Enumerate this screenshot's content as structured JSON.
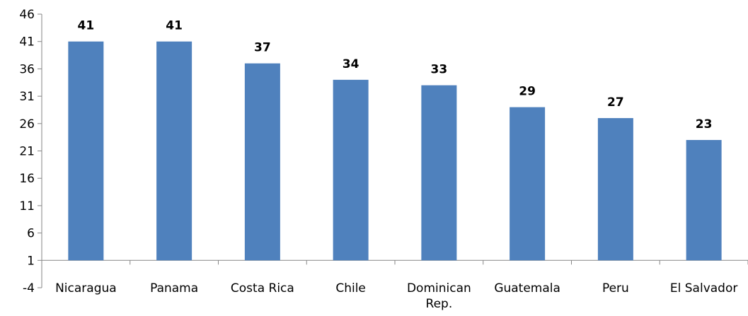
{
  "chart_data": {
    "type": "bar",
    "categories": [
      "Nicaragua",
      "Panama",
      "Costa Rica",
      "Chile",
      "Dominican Rep.",
      "Guatemala",
      "Peru",
      "El Salvador"
    ],
    "category_lines": [
      [
        "Nicaragua"
      ],
      [
        "Panama"
      ],
      [
        "Costa Rica"
      ],
      [
        "Chile"
      ],
      [
        "Dominican",
        "Rep."
      ],
      [
        "Guatemala"
      ],
      [
        "Peru"
      ],
      [
        "El Salvador"
      ]
    ],
    "values": [
      41,
      41,
      37,
      34,
      33,
      29,
      27,
      23
    ],
    "data_labels": [
      "41",
      "41",
      "37",
      "34",
      "33",
      "29",
      "27",
      "23"
    ],
    "yticks": [
      -4,
      1,
      6,
      11,
      16,
      21,
      26,
      31,
      36,
      41,
      46
    ],
    "ylim": [
      -4,
      46
    ],
    "baseline": 1,
    "grid": false,
    "legend": "none",
    "bar_color": "#4F81BD",
    "axis_color": "#868686"
  }
}
